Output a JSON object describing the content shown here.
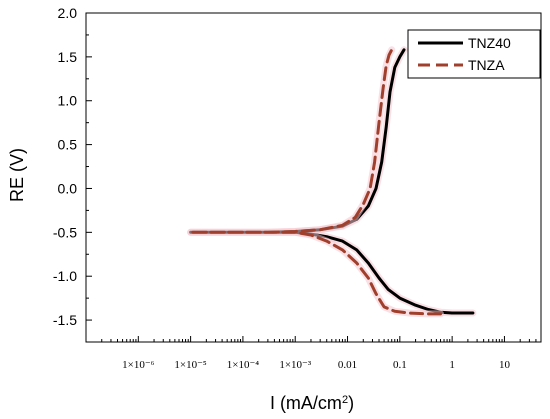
{
  "chart_data": {
    "type": "line",
    "xlabel": "I (mA/cm",
    "xlabel_sup": "2",
    "xlabel_end": ")",
    "ylabel": "RE (V)",
    "x_scale": "log",
    "xlim": [
      1e-07,
      50
    ],
    "ylim": [
      -1.75,
      2.0
    ],
    "x_ticks": [
      1e-06,
      1e-05,
      0.0001,
      0.001,
      0.01,
      0.1,
      1,
      10
    ],
    "x_tick_labels": [
      "1×10⁻⁶",
      "1×10⁻⁵",
      "1×10⁻⁴",
      "1×10⁻³",
      "0.01",
      "0.1",
      "1",
      "10"
    ],
    "y_ticks": [
      -1.5,
      -1.0,
      -0.5,
      0.0,
      0.5,
      1.0,
      1.5,
      2.0
    ],
    "y_tick_labels": [
      "-1.5",
      "-1.0",
      "-0.5",
      "0.0",
      "0.5",
      "1.0",
      "1.5",
      "2.0"
    ],
    "grid": false,
    "legend_position": "top-right",
    "series": [
      {
        "name": "TNZ40",
        "color": "#000000",
        "style": "solid",
        "points": [
          [
            2.5,
            -1.42
          ],
          [
            1.0,
            -1.42
          ],
          [
            0.6,
            -1.41
          ],
          [
            0.35,
            -1.38
          ],
          [
            0.2,
            -1.33
          ],
          [
            0.1,
            -1.25
          ],
          [
            0.06,
            -1.15
          ],
          [
            0.04,
            -1.02
          ],
          [
            0.025,
            -0.85
          ],
          [
            0.015,
            -0.7
          ],
          [
            0.008,
            -0.6
          ],
          [
            0.004,
            -0.55
          ],
          [
            0.002,
            -0.52
          ],
          [
            0.001,
            -0.5
          ],
          [
            0.0003,
            -0.5
          ],
          [
            0.0001,
            -0.5
          ],
          [
            1e-05,
            -0.5
          ],
          [
            0.0003,
            -0.5
          ],
          [
            0.001,
            -0.49
          ],
          [
            0.003,
            -0.47
          ],
          [
            0.008,
            -0.43
          ],
          [
            0.015,
            -0.35
          ],
          [
            0.025,
            -0.2
          ],
          [
            0.035,
            0.0
          ],
          [
            0.045,
            0.3
          ],
          [
            0.055,
            0.7
          ],
          [
            0.065,
            1.1
          ],
          [
            0.08,
            1.38
          ],
          [
            0.1,
            1.5
          ],
          [
            0.12,
            1.58
          ]
        ]
      },
      {
        "name": "TNZA",
        "color": "#a0402c",
        "style": "dashed",
        "points": [
          [
            0.6,
            -1.43
          ],
          [
            0.35,
            -1.43
          ],
          [
            0.15,
            -1.42
          ],
          [
            0.08,
            -1.4
          ],
          [
            0.05,
            -1.35
          ],
          [
            0.035,
            -1.2
          ],
          [
            0.025,
            -1.02
          ],
          [
            0.015,
            -0.85
          ],
          [
            0.008,
            -0.7
          ],
          [
            0.004,
            -0.6
          ],
          [
            0.002,
            -0.53
          ],
          [
            0.001,
            -0.5
          ],
          [
            0.0003,
            -0.5
          ],
          [
            0.0001,
            -0.5
          ],
          [
            1e-05,
            -0.5
          ],
          [
            0.0003,
            -0.5
          ],
          [
            0.001,
            -0.49
          ],
          [
            0.003,
            -0.47
          ],
          [
            0.008,
            -0.42
          ],
          [
            0.014,
            -0.33
          ],
          [
            0.02,
            -0.18
          ],
          [
            0.027,
            0.0
          ],
          [
            0.033,
            0.3
          ],
          [
            0.04,
            0.75
          ],
          [
            0.048,
            1.15
          ],
          [
            0.055,
            1.4
          ],
          [
            0.062,
            1.52
          ],
          [
            0.07,
            1.58
          ]
        ]
      }
    ]
  }
}
